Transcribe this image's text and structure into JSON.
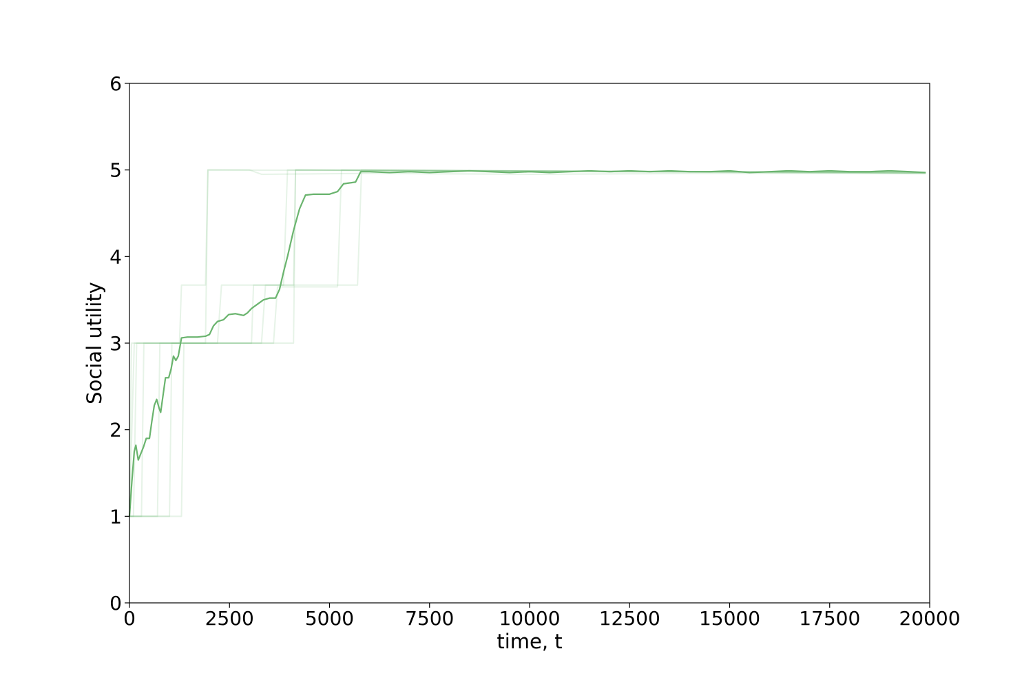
{
  "chart_data": {
    "type": "line",
    "title": "",
    "xlabel": "time, t",
    "ylabel": "Social utility",
    "xlim": [
      0,
      20000
    ],
    "ylim": [
      0,
      6
    ],
    "xticks": [
      0,
      2500,
      5000,
      7500,
      10000,
      12500,
      15000,
      17500,
      20000
    ],
    "yticks": [
      0,
      1,
      2,
      3,
      4,
      5,
      6
    ],
    "grid": false,
    "legend": "none",
    "colors": {
      "mean": "#6ab46e",
      "runs": "#4daa57"
    },
    "series": [
      {
        "role": "mean",
        "points": [
          [
            0,
            1.0
          ],
          [
            60,
            1.4
          ],
          [
            120,
            1.75
          ],
          [
            160,
            1.82
          ],
          [
            220,
            1.65
          ],
          [
            280,
            1.72
          ],
          [
            350,
            1.8
          ],
          [
            420,
            1.9
          ],
          [
            500,
            1.9
          ],
          [
            560,
            2.1
          ],
          [
            620,
            2.28
          ],
          [
            680,
            2.35
          ],
          [
            740,
            2.25
          ],
          [
            780,
            2.2
          ],
          [
            840,
            2.4
          ],
          [
            900,
            2.6
          ],
          [
            980,
            2.6
          ],
          [
            1040,
            2.7
          ],
          [
            1100,
            2.85
          ],
          [
            1160,
            2.8
          ],
          [
            1220,
            2.85
          ],
          [
            1300,
            3.06
          ],
          [
            1450,
            3.07
          ],
          [
            1700,
            3.07
          ],
          [
            1900,
            3.08
          ],
          [
            2000,
            3.1
          ],
          [
            2100,
            3.2
          ],
          [
            2200,
            3.25
          ],
          [
            2350,
            3.27
          ],
          [
            2480,
            3.33
          ],
          [
            2650,
            3.34
          ],
          [
            2850,
            3.32
          ],
          [
            2950,
            3.35
          ],
          [
            3050,
            3.4
          ],
          [
            3200,
            3.45
          ],
          [
            3350,
            3.5
          ],
          [
            3500,
            3.52
          ],
          [
            3650,
            3.52
          ],
          [
            3750,
            3.62
          ],
          [
            3850,
            3.82
          ],
          [
            3950,
            4.0
          ],
          [
            4100,
            4.3
          ],
          [
            4250,
            4.55
          ],
          [
            4400,
            4.71
          ],
          [
            4600,
            4.72
          ],
          [
            4800,
            4.72
          ],
          [
            5000,
            4.72
          ],
          [
            5200,
            4.75
          ],
          [
            5350,
            4.84
          ],
          [
            5500,
            4.85
          ],
          [
            5650,
            4.86
          ],
          [
            5780,
            4.98
          ],
          [
            6000,
            4.98
          ],
          [
            6500,
            4.97
          ],
          [
            7000,
            4.98
          ],
          [
            7500,
            4.97
          ],
          [
            8000,
            4.98
          ],
          [
            8500,
            4.99
          ],
          [
            9000,
            4.98
          ],
          [
            9500,
            4.97
          ],
          [
            10000,
            4.98
          ],
          [
            10500,
            4.97
          ],
          [
            11000,
            4.98
          ],
          [
            11500,
            4.99
          ],
          [
            12000,
            4.98
          ],
          [
            12500,
            4.99
          ],
          [
            13000,
            4.98
          ],
          [
            13500,
            4.99
          ],
          [
            14000,
            4.98
          ],
          [
            14500,
            4.98
          ],
          [
            15000,
            4.99
          ],
          [
            15500,
            4.97
          ],
          [
            16000,
            4.98
          ],
          [
            16500,
            4.99
          ],
          [
            17000,
            4.98
          ],
          [
            17500,
            4.99
          ],
          [
            18000,
            4.98
          ],
          [
            18500,
            4.98
          ],
          [
            19000,
            4.99
          ],
          [
            19500,
            4.98
          ],
          [
            19900,
            4.97
          ]
        ]
      },
      {
        "role": "run",
        "points": [
          [
            0,
            1.0
          ],
          [
            50,
            3.0
          ],
          [
            1900,
            3.0
          ],
          [
            1960,
            5.0
          ],
          [
            3000,
            5.0
          ],
          [
            3300,
            4.95
          ],
          [
            6000,
            4.96
          ],
          [
            10000,
            4.95
          ],
          [
            15000,
            4.96
          ],
          [
            19900,
            4.96
          ]
        ]
      },
      {
        "role": "run",
        "points": [
          [
            0,
            1.0
          ],
          [
            120,
            3.0
          ],
          [
            1250,
            3.0
          ],
          [
            1300,
            3.67
          ],
          [
            1900,
            3.67
          ],
          [
            1960,
            5.0
          ],
          [
            19900,
            4.97
          ]
        ]
      },
      {
        "role": "run",
        "points": [
          [
            0,
            1.0
          ],
          [
            100,
            1.0
          ],
          [
            180,
            3.0
          ],
          [
            3050,
            3.0
          ],
          [
            3100,
            3.67
          ],
          [
            3850,
            3.67
          ],
          [
            3950,
            5.0
          ],
          [
            19900,
            4.97
          ]
        ]
      },
      {
        "role": "run",
        "points": [
          [
            0,
            1.0
          ],
          [
            700,
            1.0
          ],
          [
            760,
            3.0
          ],
          [
            3300,
            3.0
          ],
          [
            3400,
            3.67
          ],
          [
            4100,
            3.67
          ],
          [
            4150,
            5.0
          ],
          [
            19900,
            4.97
          ]
        ]
      },
      {
        "role": "run",
        "points": [
          [
            0,
            1.0
          ],
          [
            1000,
            1.0
          ],
          [
            1060,
            3.0
          ],
          [
            3600,
            3.0
          ],
          [
            3700,
            3.65
          ],
          [
            5200,
            3.65
          ],
          [
            5300,
            5.0
          ],
          [
            19900,
            4.96
          ]
        ]
      },
      {
        "role": "run",
        "points": [
          [
            0,
            1.0
          ],
          [
            1300,
            1.0
          ],
          [
            1360,
            3.0
          ],
          [
            2200,
            3.0
          ],
          [
            2300,
            3.67
          ],
          [
            5700,
            3.67
          ],
          [
            5800,
            5.0
          ],
          [
            19900,
            4.97
          ]
        ]
      },
      {
        "role": "run",
        "points": [
          [
            0,
            1.0
          ],
          [
            300,
            1.0
          ],
          [
            360,
            3.0
          ],
          [
            4100,
            3.0
          ],
          [
            4150,
            5.0
          ],
          [
            19900,
            4.96
          ]
        ]
      }
    ]
  }
}
